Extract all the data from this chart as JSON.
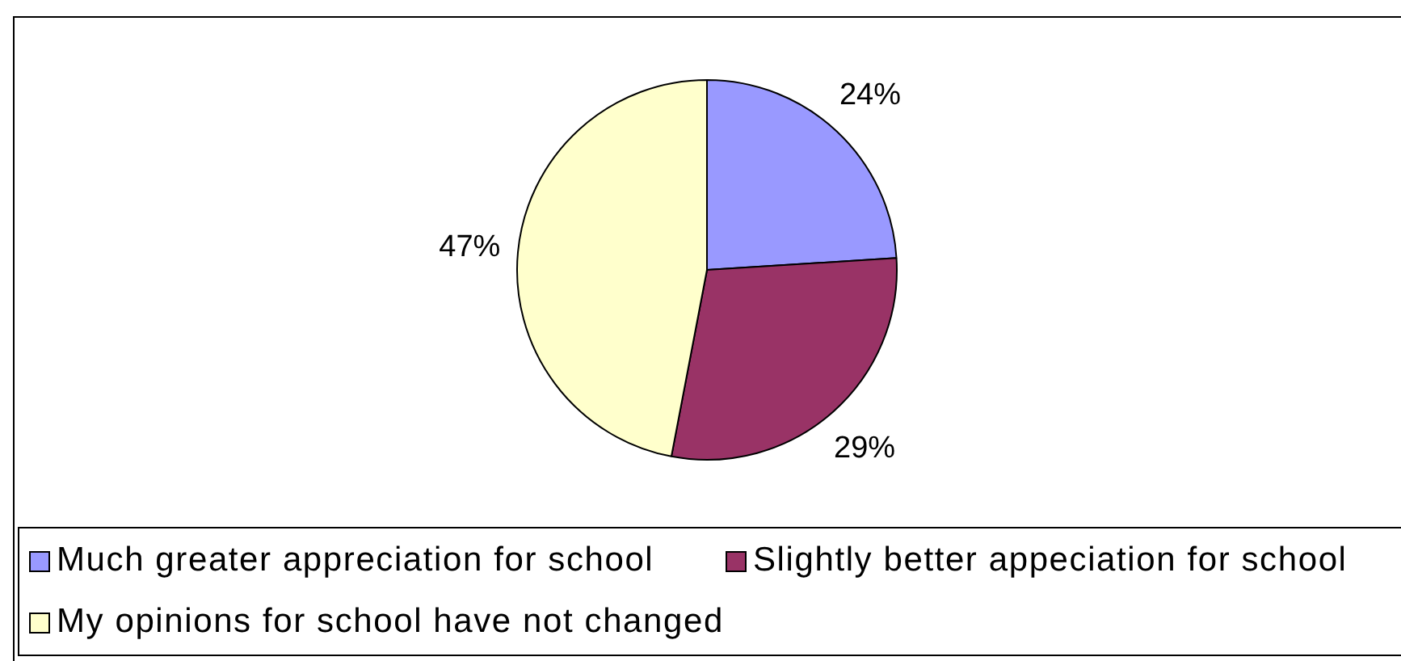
{
  "chart_data": {
    "type": "pie",
    "categories": [
      "Much greater appreciation for school",
      "Slightly better appeciation for school",
      "My opinions for school have not changed"
    ],
    "values": [
      24,
      29,
      47
    ],
    "colors": [
      "#9999ff",
      "#993366",
      "#ffffcc"
    ],
    "value_labels": [
      "24%",
      "29%",
      "47%"
    ],
    "legend": "bottom"
  }
}
